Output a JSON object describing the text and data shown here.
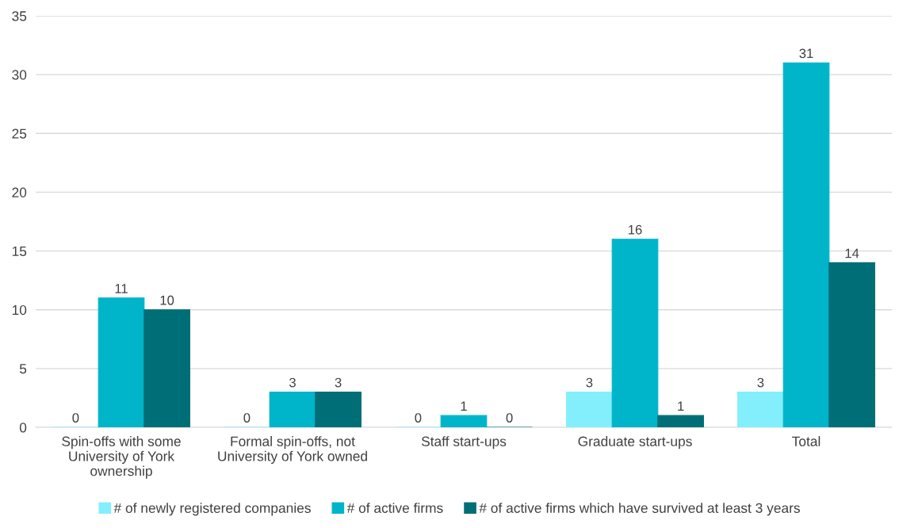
{
  "chart_data": {
    "type": "bar",
    "categories": [
      "Spin-offs with some\nUniversity of York\nownership",
      "Formal spin-offs, not\nUniversity of York owned",
      "Staff start-ups",
      "Graduate start-ups",
      "Total"
    ],
    "series": [
      {
        "name": "# of newly registered companies",
        "color": "#84effc",
        "values": [
          0,
          0,
          0,
          3,
          3
        ]
      },
      {
        "name": "# of active firms",
        "color": "#00b4c9",
        "values": [
          11,
          3,
          1,
          16,
          31
        ]
      },
      {
        "name": "# of active firms which have survived at least 3 years",
        "color": "#006e76",
        "values": [
          10,
          3,
          0,
          1,
          14
        ]
      }
    ],
    "ylim": [
      0,
      35
    ],
    "yticks": [
      0,
      5,
      10,
      15,
      20,
      25,
      30,
      35
    ],
    "grid": "y",
    "legend": "bottom",
    "data_labels": true
  }
}
